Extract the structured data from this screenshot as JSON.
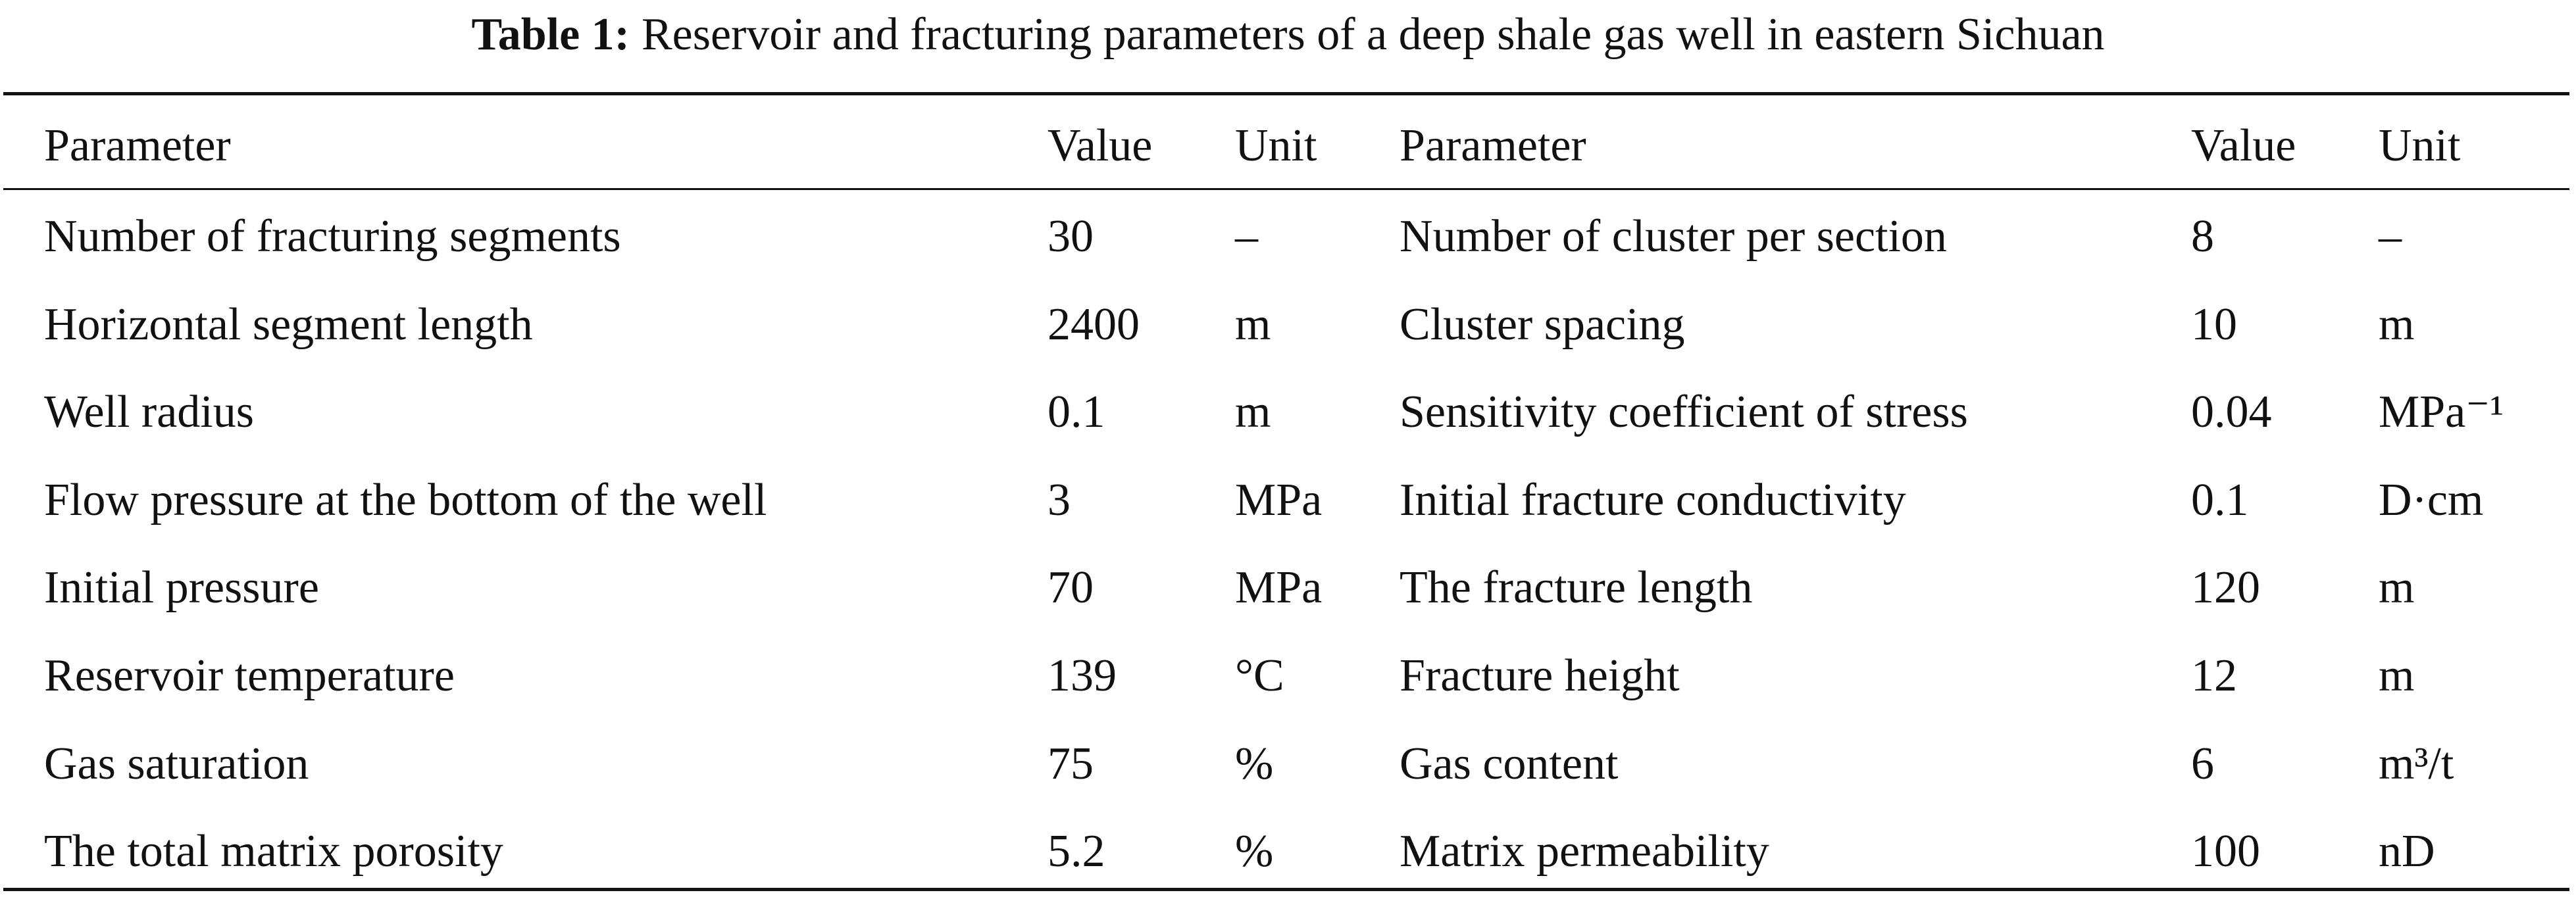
{
  "title": {
    "label": "Table 1:",
    "text": "Reservoir and fracturing parameters of a deep shale gas well in eastern Sichuan"
  },
  "table": {
    "header": [
      "Parameter",
      "Value",
      "Unit",
      "Parameter",
      "Value",
      "Unit"
    ],
    "rows": [
      [
        "Number of fracturing segments",
        30,
        "–",
        "Number of cluster per section",
        8,
        "–"
      ],
      [
        "Horizontal segment length",
        2400,
        "m",
        "Cluster spacing",
        10,
        "m"
      ],
      [
        "Well radius",
        0.1,
        "m",
        "Sensitivity coefficient of stress",
        0.04,
        "MPa⁻¹"
      ],
      [
        "Flow pressure at the bottom of the well",
        3,
        "MPa",
        "Initial fracture conductivity",
        0.1,
        "D·cm"
      ],
      [
        "Initial pressure",
        70,
        "MPa",
        "The fracture length",
        120,
        "m"
      ],
      [
        "Reservoir temperature",
        139,
        "°C",
        "Fracture height",
        12,
        "m"
      ],
      [
        "Gas saturation",
        75,
        "%",
        "Gas content",
        6,
        "m³/t"
      ],
      [
        "The total matrix porosity",
        5.2,
        "%",
        "Matrix permeability",
        100,
        "nD"
      ]
    ]
  }
}
